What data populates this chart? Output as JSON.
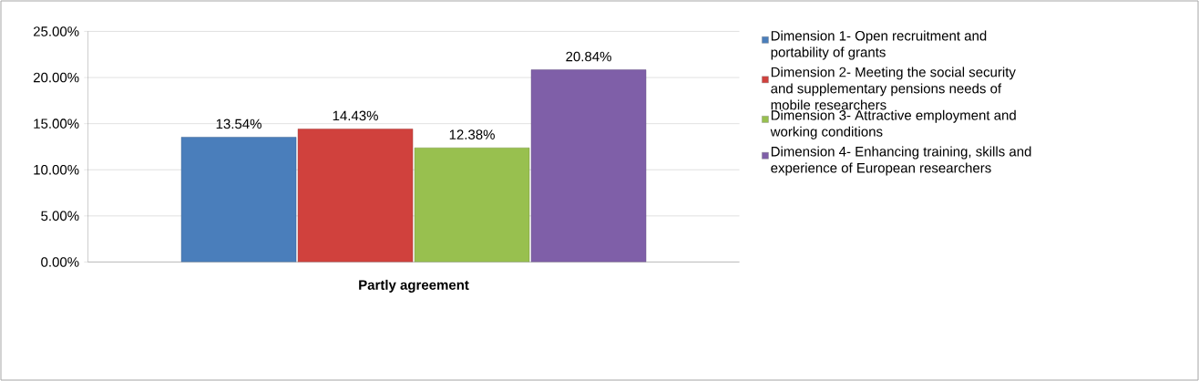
{
  "chart_data": {
    "type": "bar",
    "categories": [
      "Partly agreement"
    ],
    "series": [
      {
        "name": "Dimension 1- Open recruitment and portability of grants",
        "color": "#4a7ebb",
        "values": [
          13.54
        ],
        "value_labels": [
          "13.54%"
        ]
      },
      {
        "name": "Dimension 2- Meeting the social security and supplementary pensions needs of mobile researchers",
        "color": "#d0413d",
        "values": [
          14.43
        ],
        "value_labels": [
          "14.43%"
        ]
      },
      {
        "name": "Dimension 3- Attractive employment and working conditions",
        "color": "#98c04f",
        "values": [
          12.38
        ],
        "value_labels": [
          "12.38%"
        ]
      },
      {
        "name": "Dimension 4- Enhancing training, skills and experience of European researchers",
        "color": "#7f5fa8",
        "values": [
          20.84
        ],
        "value_labels": [
          "20.84%"
        ]
      }
    ],
    "ylim": [
      0,
      25
    ],
    "yticks": [
      {
        "value": 0,
        "label": "0.00%"
      },
      {
        "value": 5,
        "label": "5.00%"
      },
      {
        "value": 10,
        "label": "10.00%"
      },
      {
        "value": 15,
        "label": "15.00%"
      },
      {
        "value": 20,
        "label": "20.00%"
      },
      {
        "value": 25,
        "label": "25.00%"
      }
    ],
    "grid": "y",
    "legend": "right"
  }
}
